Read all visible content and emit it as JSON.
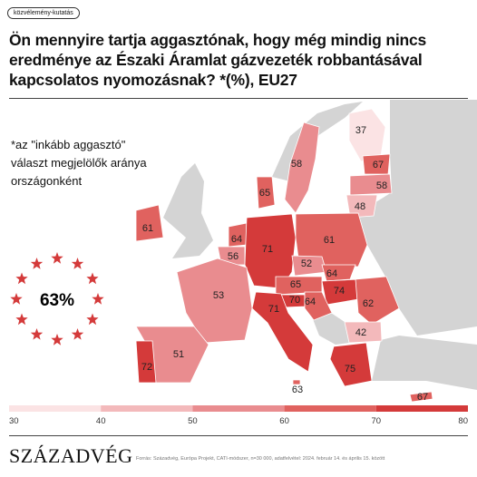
{
  "header": {
    "tag": "közvélemény-kutatás",
    "title": "Ön mennyire tartja aggasztónak, hogy még mindig nincs eredménye az Északi Áramlat gázvezeték robbantásával kapcsolatos nyomozásnak? *(%), EU27"
  },
  "chart_data": {
    "type": "choropleth",
    "note": "*az \"inkább aggasztó\" választ megjelölők aránya országonként",
    "eu27": {
      "value": 63,
      "value_label": "63%"
    },
    "values": [
      37,
      58,
      67,
      58,
      48,
      65,
      61,
      64,
      56,
      71,
      61,
      52,
      53,
      65,
      64,
      74,
      62,
      70,
      64,
      71,
      42,
      51,
      72,
      75,
      63,
      67
    ],
    "scale": {
      "ticks": [
        30,
        40,
        50,
        60,
        70,
        80
      ],
      "colors": [
        "#fbe3e4",
        "#f3b9bb",
        "#e98c8f",
        "#e0625f",
        "#d43a3a"
      ]
    }
  },
  "footer": {
    "logo": "SZÁZADVÉG",
    "source": "Forrás: Századvég, Európa Projekt, CATI-módszer, n=30 000, adatfelvétel: 2024. február 14. és április 15. között"
  }
}
